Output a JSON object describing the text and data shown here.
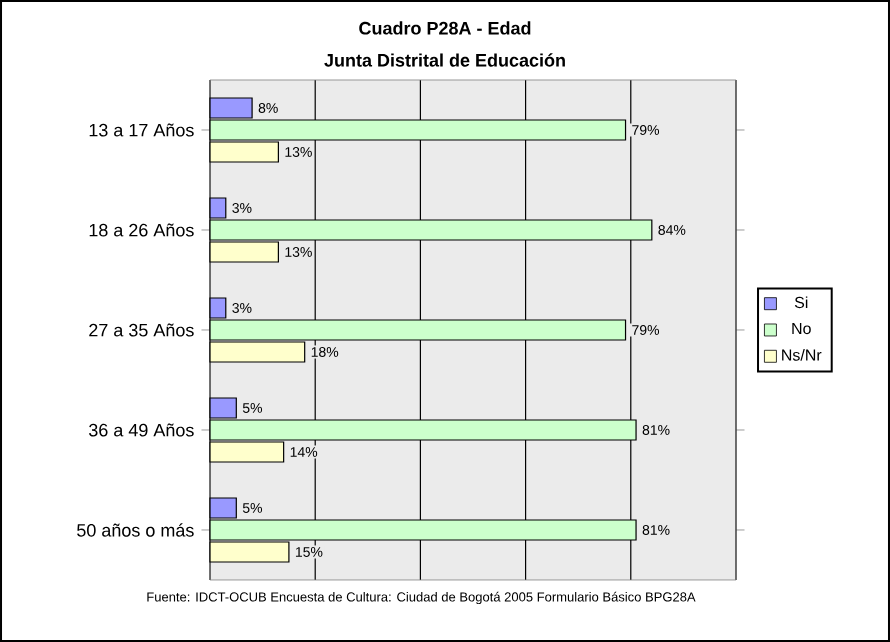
{
  "chart_data": {
    "type": "bar",
    "orientation": "horizontal",
    "title": "Cuadro P28A - Edad",
    "subtitle": "Junta Distrital de Educación",
    "categories": [
      "13 a 17 Años",
      "18 a 26 Años",
      "27 a 35 Años",
      "36 a 49 Años",
      "50 años o más"
    ],
    "series": [
      {
        "name": "Si",
        "color": "#9999ff",
        "values": [
          8,
          3,
          3,
          5,
          5
        ],
        "value_labels": [
          "8%",
          "3%",
          "3%",
          "5%",
          "5%"
        ]
      },
      {
        "name": "No",
        "color": "#ccffcc",
        "values": [
          79,
          84,
          79,
          81,
          81
        ],
        "value_labels": [
          "79%",
          "84%",
          "79%",
          "81%",
          "81%"
        ]
      },
      {
        "name": "Ns/Nr",
        "color": "#ffffcc",
        "values": [
          13,
          13,
          18,
          14,
          15
        ],
        "value_labels": [
          "13%",
          "13%",
          "18%",
          "14%",
          "15%"
        ]
      }
    ],
    "xlim": [
      0,
      100
    ],
    "xticks": [
      {
        "value": 0,
        "label": null
      },
      {
        "value": 20,
        "label": null
      },
      {
        "value": 40,
        "label": null
      },
      {
        "value": 60,
        "label": null
      },
      {
        "value": 80,
        "label": null
      },
      {
        "value": 100,
        "label": null
      }
    ],
    "tick_labels": "y",
    "grid": "x",
    "legend": "right",
    "annotations": [
      "Fuente: IDCT-OCUB Encuesta de Cultura: Ciudad de Bogotá 2005 Formulario Básico BPG28A"
    ]
  }
}
